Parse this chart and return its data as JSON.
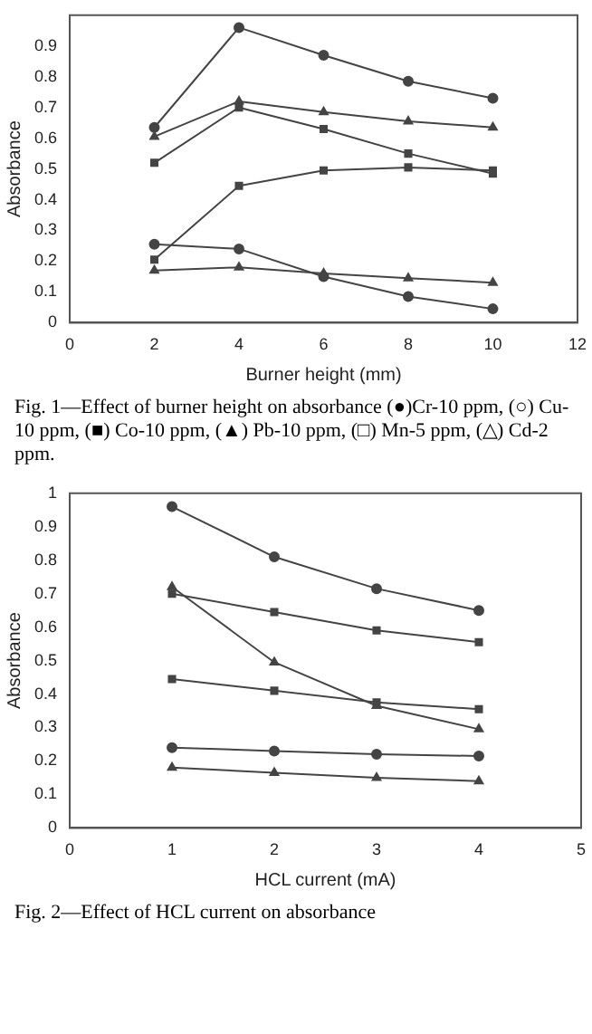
{
  "chart_data": [
    {
      "type": "line",
      "x": [
        2,
        4,
        6,
        8,
        10
      ],
      "xlabel": "Burner height (mm)",
      "ylabel": "Absorbance",
      "xlim": [
        0,
        12
      ],
      "xticks": [
        0,
        2,
        4,
        6,
        8,
        10,
        12
      ],
      "ylim": [
        0,
        1
      ],
      "yticks": [
        0,
        0.1,
        0.2,
        0.3,
        0.4,
        0.5,
        0.6,
        0.7,
        0.8,
        0.9
      ],
      "grid": false,
      "legend": false,
      "series": [
        {
          "color": "#444444",
          "marker": "circle",
          "values": [
            0.255,
            0.24,
            0.15,
            0.085,
            0.045
          ]
        },
        {
          "color": "#444444",
          "marker": "circle",
          "values": [
            0.635,
            0.96,
            0.87,
            0.785,
            0.73
          ]
        },
        {
          "color": "#444444",
          "marker": "square",
          "values": [
            0.205,
            0.445,
            0.495,
            0.505,
            0.495
          ]
        },
        {
          "color": "#444444",
          "marker": "triangle",
          "values": [
            0.17,
            0.18,
            0.16,
            0.145,
            0.13
          ]
        },
        {
          "color": "#444444",
          "marker": "square",
          "values": [
            0.52,
            0.7,
            0.63,
            0.55,
            0.485
          ]
        },
        {
          "color": "#444444",
          "marker": "triangle",
          "values": [
            0.605,
            0.72,
            0.685,
            0.655,
            0.635
          ]
        }
      ],
      "annotations": [
        "Fig. 1—Effect of burner height on absorbance (●)Cr-10 ppm, (○) Cu-10 ppm, (■) Co-10 ppm, (▲) Pb-10 ppm, (□) Mn-5 ppm, (△) Cd-2 ppm."
      ]
    },
    {
      "type": "line",
      "x": [
        1,
        2,
        3,
        4
      ],
      "xlabel": "HCL current (mA)",
      "ylabel": "Absorbance",
      "xlim": [
        0,
        5
      ],
      "xticks": [
        0,
        1,
        2,
        3,
        4,
        5
      ],
      "ylim": [
        0,
        1
      ],
      "yticks": [
        0,
        0.1,
        0.2,
        0.3,
        0.4,
        0.5,
        0.6,
        0.7,
        0.8,
        0.9,
        1
      ],
      "grid": false,
      "legend": false,
      "series": [
        {
          "color": "#444444",
          "marker": "circle",
          "values": [
            0.24,
            0.23,
            0.22,
            0.215
          ]
        },
        {
          "color": "#444444",
          "marker": "circle",
          "values": [
            0.96,
            0.81,
            0.715,
            0.65
          ]
        },
        {
          "color": "#444444",
          "marker": "square",
          "values": [
            0.445,
            0.41,
            0.375,
            0.355
          ]
        },
        {
          "color": "#444444",
          "marker": "triangle",
          "values": [
            0.18,
            0.165,
            0.15,
            0.14
          ]
        },
        {
          "color": "#444444",
          "marker": "square",
          "values": [
            0.7,
            0.645,
            0.59,
            0.555
          ]
        },
        {
          "color": "#444444",
          "marker": "triangle",
          "values": [
            0.72,
            0.495,
            0.365,
            0.295
          ]
        }
      ],
      "annotations": [
        "Fig. 2—Effect of HCL current on absorbance"
      ]
    }
  ]
}
